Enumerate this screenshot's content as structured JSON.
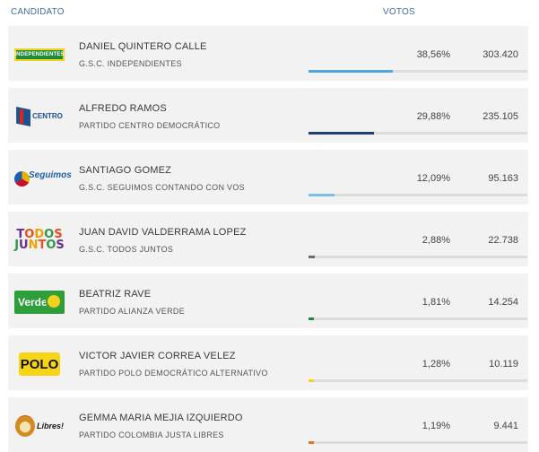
{
  "header": {
    "candidato": "CANDIDATO",
    "votos": "VOTOS"
  },
  "candidates": [
    {
      "name": "DANIEL QUINTERO CALLE",
      "party": "G.S.C. INDEPENDIENTES",
      "pct_label": "38,56%",
      "pct": 38.56,
      "votes": "303.420",
      "color": "#4aa8dc",
      "logo": "independientes-logo",
      "logo_text": "INDEPENDIENTES"
    },
    {
      "name": "ALFREDO RAMOS",
      "party": "PARTIDO CENTRO DEMOCRÁTICO",
      "pct_label": "29,88%",
      "pct": 29.88,
      "votes": "235.105",
      "color": "#1c3f6e",
      "logo": "centro-democratico-logo",
      "logo_text": "CENTRO"
    },
    {
      "name": "SANTIAGO GOMEZ",
      "party": "G.S.C. SEGUIMOS CONTANDO CON VOS",
      "pct_label": "12,09%",
      "pct": 12.09,
      "votes": "95.163",
      "color": "#7cc0e6",
      "logo": "seguimos-logo",
      "logo_text": "Seguimos"
    },
    {
      "name": "JUAN DAVID VALDERRAMA LOPEZ",
      "party": "G.S.C. TODOS JUNTOS",
      "pct_label": "2,88%",
      "pct": 2.88,
      "votes": "22.738",
      "color": "#6b6b78",
      "logo": "todos-juntos-logo",
      "logo_text": "TODOS JUNTOS"
    },
    {
      "name": "BEATRIZ RAVE",
      "party": "PARTIDO ALIANZA VERDE",
      "pct_label": "1,81%",
      "pct": 1.81,
      "votes": "14.254",
      "color": "#1f8a3a",
      "logo": "alianza-verde-logo",
      "logo_text": "Verde"
    },
    {
      "name": "VICTOR JAVIER CORREA VELEZ",
      "party": "PARTIDO POLO DEMOCRÁTICO ALTERNATIVO",
      "pct_label": "1,28%",
      "pct": 1.28,
      "votes": "10.119",
      "color": "#f2d21a",
      "logo": "polo-logo",
      "logo_text": "POLO"
    },
    {
      "name": "GEMMA MARIA MEJIA IZQUIERDO",
      "party": "PARTIDO COLOMBIA JUSTA LIBRES",
      "pct_label": "1,19%",
      "pct": 1.19,
      "votes": "9.441",
      "color": "#e8731a",
      "logo": "colombia-justa-libres-logo",
      "logo_text": "Libres!"
    }
  ]
}
